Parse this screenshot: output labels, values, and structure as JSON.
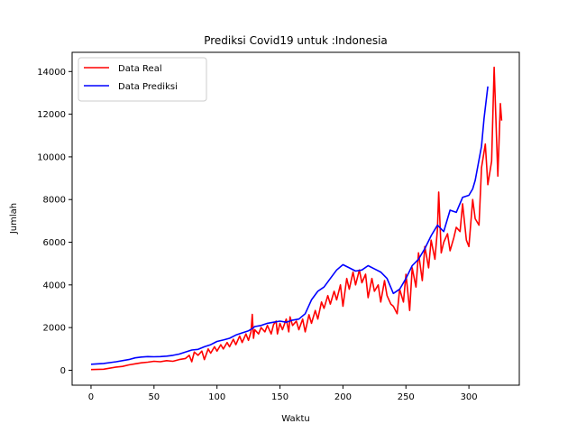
{
  "chart_data": {
    "type": "line",
    "title": "Prediksi Covid19 untuk :Indonesia",
    "xlabel": "Waktu",
    "ylabel": "Jumlah",
    "xlim": [
      -15,
      340
    ],
    "ylim": [
      -700,
      14900
    ],
    "xticks": [
      0,
      50,
      100,
      150,
      200,
      250,
      300
    ],
    "yticks": [
      0,
      2000,
      4000,
      6000,
      8000,
      10000,
      12000,
      14000
    ],
    "legend_position": "top-left",
    "grid": false,
    "series": [
      {
        "name": "Data Real",
        "color": "#ff0000",
        "x": [
          0,
          10,
          20,
          25,
          30,
          35,
          40,
          45,
          50,
          55,
          60,
          65,
          70,
          75,
          78,
          80,
          82,
          85,
          88,
          90,
          93,
          95,
          98,
          100,
          103,
          105,
          108,
          110,
          113,
          115,
          118,
          120,
          123,
          125,
          127,
          128,
          129,
          130,
          133,
          135,
          138,
          140,
          143,
          145,
          147,
          148,
          150,
          152,
          155,
          157,
          158,
          160,
          163,
          165,
          168,
          170,
          173,
          175,
          178,
          180,
          183,
          185,
          188,
          190,
          193,
          195,
          198,
          200,
          203,
          205,
          208,
          210,
          213,
          215,
          218,
          220,
          223,
          225,
          228,
          230,
          233,
          235,
          238,
          240,
          243,
          245,
          248,
          250,
          253,
          255,
          258,
          260,
          263,
          265,
          268,
          270,
          273,
          275,
          276,
          278,
          280,
          283,
          285,
          288,
          290,
          293,
          295,
          298,
          300,
          303,
          305,
          308,
          310,
          313,
          315,
          318,
          320,
          323,
          325,
          326
        ],
        "y": [
          30,
          50,
          150,
          180,
          250,
          300,
          350,
          380,
          420,
          400,
          450,
          420,
          500,
          550,
          700,
          400,
          850,
          700,
          900,
          500,
          1000,
          800,
          1100,
          900,
          1200,
          1000,
          1300,
          1100,
          1450,
          1200,
          1600,
          1300,
          1700,
          1400,
          1800,
          2620,
          1500,
          1900,
          1700,
          2000,
          1800,
          2100,
          1700,
          2150,
          2300,
          1700,
          2200,
          1900,
          2400,
          1800,
          2500,
          2100,
          2300,
          1900,
          2400,
          1800,
          2600,
          2200,
          2800,
          2400,
          3200,
          2900,
          3500,
          3100,
          3700,
          3300,
          4000,
          3000,
          4300,
          3800,
          4600,
          4000,
          4700,
          4100,
          4500,
          3400,
          4300,
          3700,
          4000,
          3200,
          4200,
          3500,
          3100,
          3000,
          2650,
          3800,
          3200,
          4500,
          2800,
          4800,
          3900,
          5500,
          4200,
          5800,
          4800,
          6100,
          5200,
          6600,
          8350,
          5500,
          6000,
          6400,
          5600,
          6200,
          6700,
          6500,
          7800,
          6100,
          5800,
          8000,
          7100,
          6800,
          9500,
          10600,
          8700,
          9800,
          14200,
          9100,
          12500,
          11700
        ]
      },
      {
        "name": "Data Prediksi",
        "color": "#0000ff",
        "x": [
          0,
          10,
          20,
          30,
          35,
          40,
          45,
          50,
          55,
          60,
          65,
          70,
          75,
          80,
          85,
          90,
          95,
          100,
          105,
          110,
          115,
          120,
          125,
          128,
          130,
          135,
          140,
          145,
          150,
          155,
          160,
          165,
          170,
          175,
          180,
          185,
          190,
          195,
          200,
          205,
          210,
          215,
          220,
          225,
          230,
          235,
          240,
          245,
          250,
          255,
          260,
          265,
          270,
          275,
          280,
          285,
          290,
          295,
          300,
          303,
          305,
          310,
          312,
          315
        ],
        "y": [
          280,
          320,
          400,
          500,
          580,
          620,
          640,
          630,
          640,
          660,
          700,
          760,
          850,
          950,
          980,
          1100,
          1200,
          1350,
          1420,
          1500,
          1650,
          1750,
          1850,
          1950,
          2050,
          2100,
          2200,
          2250,
          2300,
          2250,
          2350,
          2400,
          2650,
          3300,
          3700,
          3900,
          4300,
          4700,
          4950,
          4800,
          4650,
          4700,
          4900,
          4750,
          4600,
          4300,
          3600,
          3800,
          4300,
          4900,
          5200,
          5700,
          6300,
          6800,
          6500,
          7500,
          7400,
          8100,
          8200,
          8500,
          8900,
          10500,
          11800,
          13300
        ]
      }
    ]
  }
}
